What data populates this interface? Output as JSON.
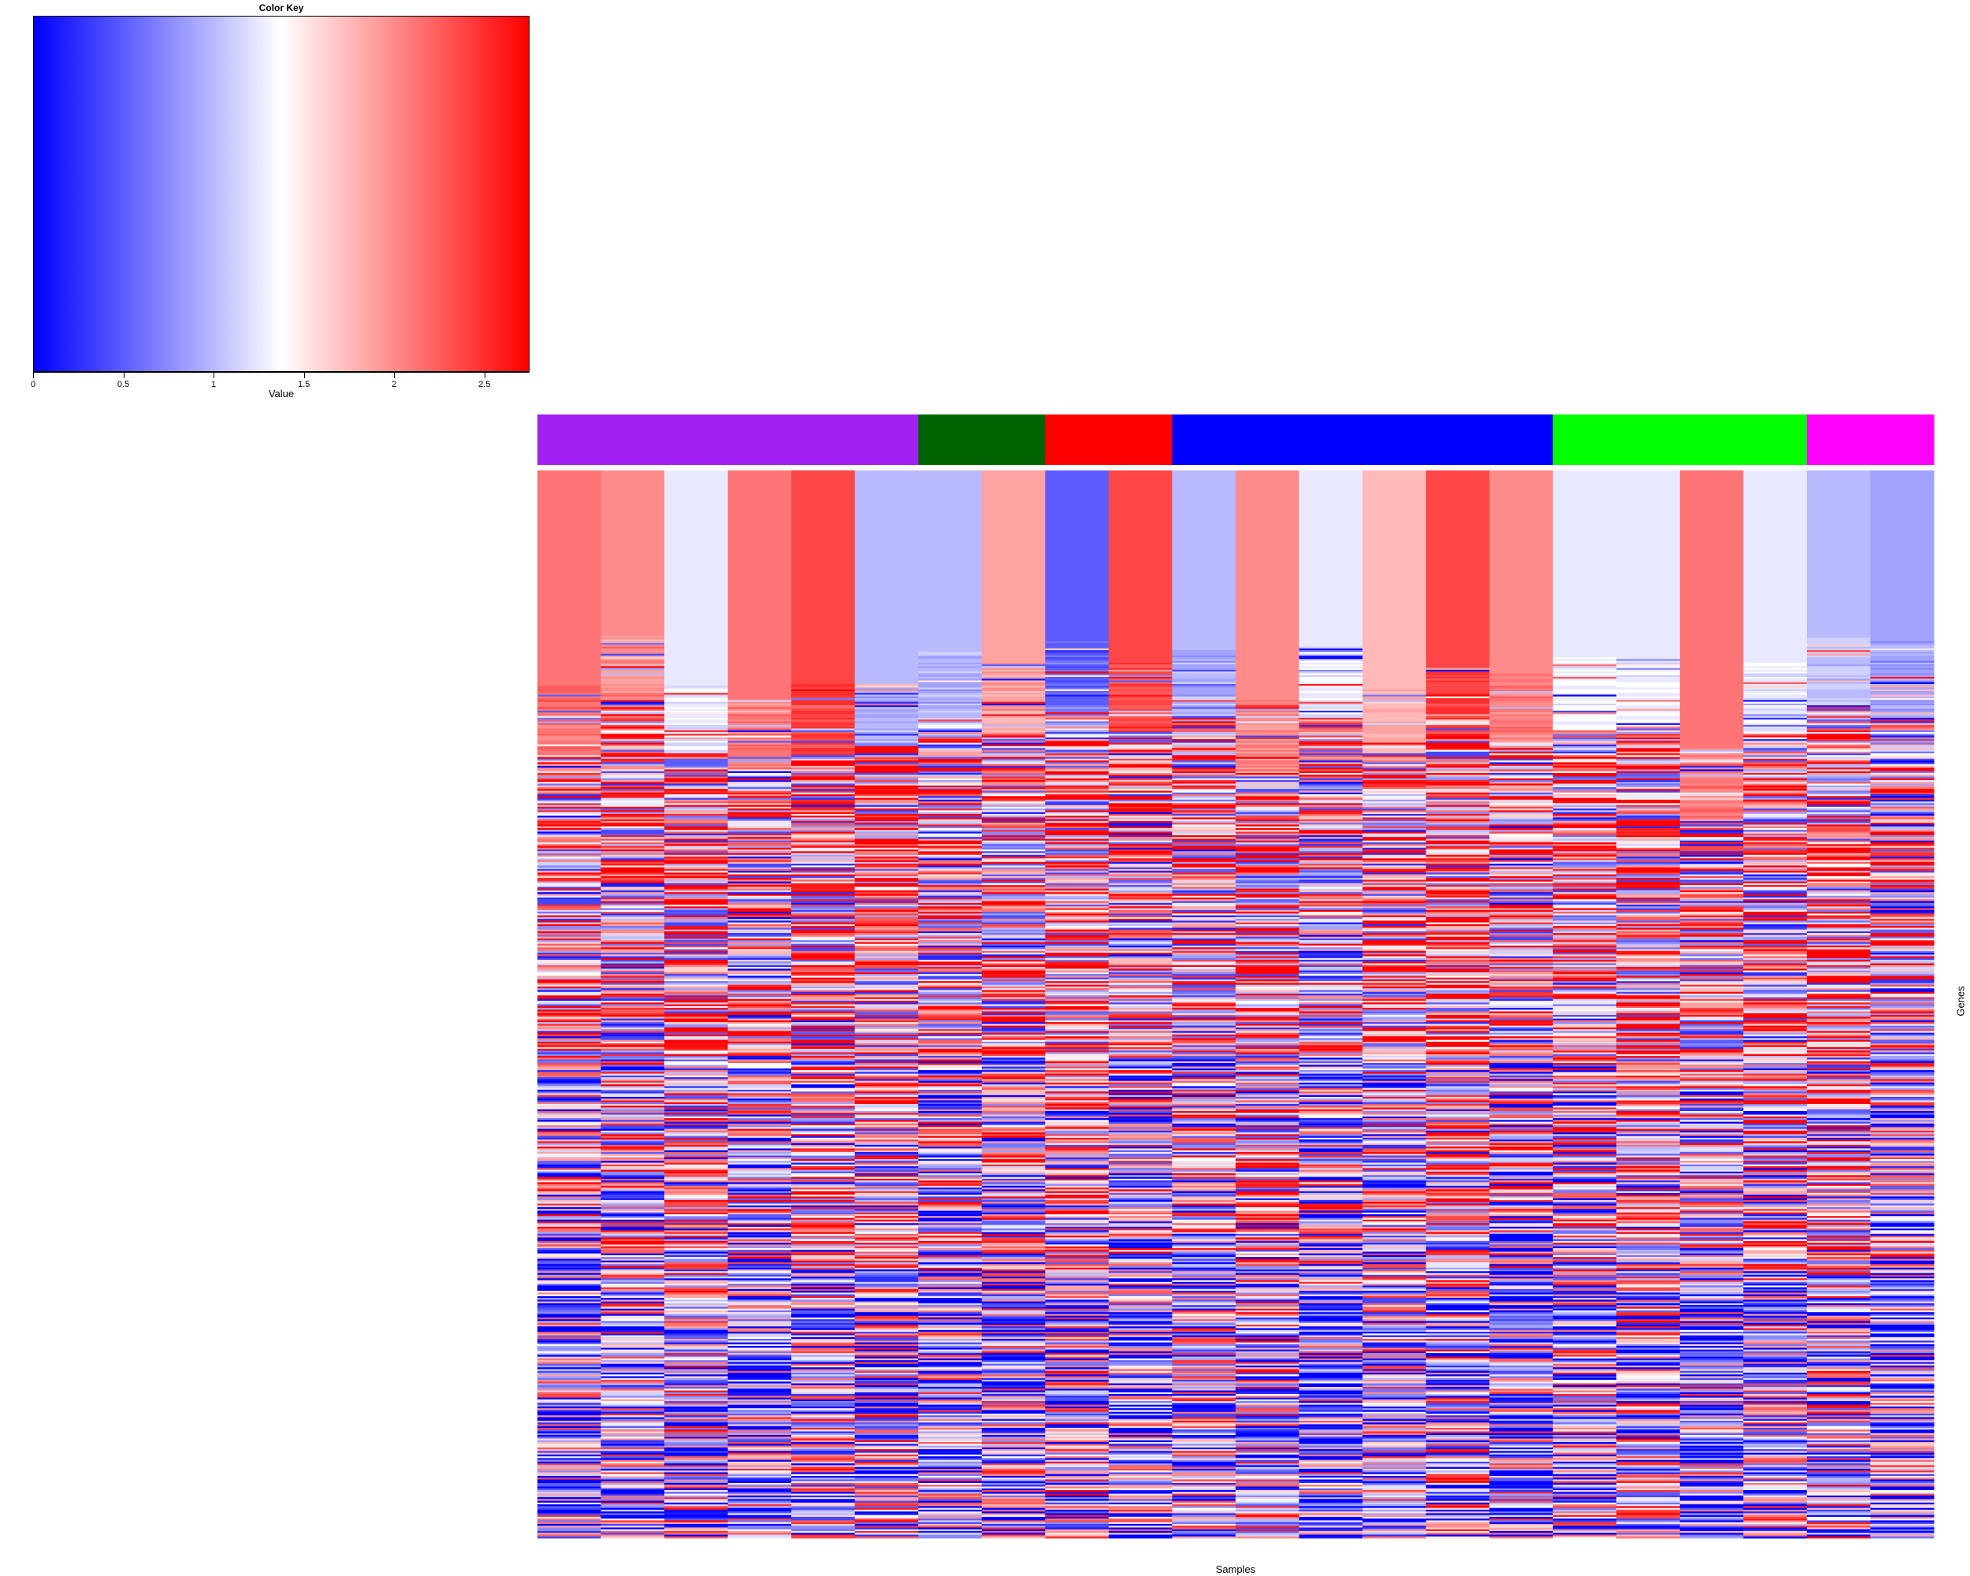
{
  "color_key": {
    "title": "Color Key",
    "xlabel": "Value",
    "range": [
      0,
      2.75
    ],
    "ticks": [
      "0",
      "0.5",
      "1",
      "1.5",
      "2",
      "2.5"
    ],
    "tick_values": [
      0,
      0.5,
      1,
      1.5,
      2,
      2.5
    ],
    "low_color": "#0000ff",
    "mid_color": "#ffffff",
    "high_color": "#ff0000",
    "mid_value": 1.375
  },
  "chart_data": {
    "type": "heatmap",
    "xlabel": "Samples",
    "ylabel": "Genes",
    "n_samples": 22,
    "n_genes": 600,
    "value_range": [
      0,
      2.75
    ],
    "colorscale": [
      "#0000ff",
      "#ffffff",
      "#ff0000"
    ],
    "group_colors": [
      "#a020f0",
      "#006400",
      "#ff0000",
      "#0000ff",
      "#00ff00",
      "#ff00ff"
    ],
    "sample_groups": [
      0,
      0,
      0,
      0,
      0,
      0,
      1,
      1,
      2,
      2,
      3,
      3,
      3,
      3,
      3,
      3,
      4,
      4,
      4,
      4,
      5,
      5
    ],
    "top_block_levels": [
      2.15,
      1.95,
      1.25,
      2.1,
      2.4,
      0.95,
      0.95,
      1.85,
      0.55,
      2.35,
      0.95,
      2.0,
      1.25,
      1.8,
      2.4,
      2.05,
      1.3,
      1.3,
      2.1,
      1.3,
      1.05,
      0.9
    ],
    "top_block_end_fraction": [
      0.2,
      0.155,
      0.2,
      0.215,
      0.2,
      0.19,
      0.17,
      0.18,
      0.16,
      0.18,
      0.165,
      0.215,
      0.165,
      0.205,
      0.18,
      0.19,
      0.175,
      0.175,
      0.26,
      0.18,
      0.155,
      0.16
    ]
  }
}
